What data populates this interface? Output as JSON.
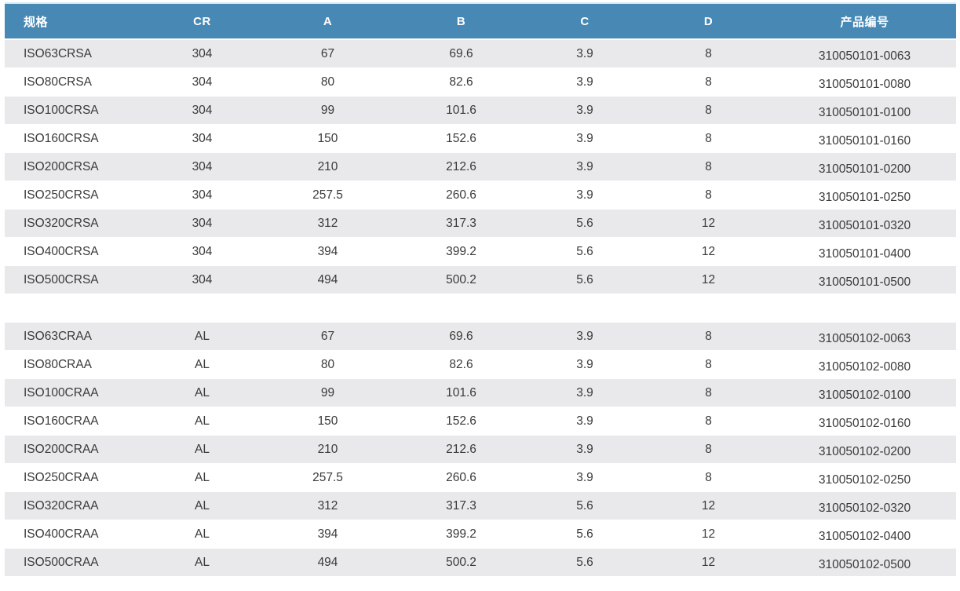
{
  "table": {
    "colors": {
      "header_bg": "#4789b4",
      "header_text": "#ffffff",
      "row_alt_bg": "#e9e9eb",
      "row_bg": "#ffffff",
      "body_text": "#3a3a3a",
      "top_border": "#d5e6f1"
    },
    "columns": [
      {
        "key": "spec",
        "label": "规格"
      },
      {
        "key": "cr",
        "label": "CR"
      },
      {
        "key": "a",
        "label": "A"
      },
      {
        "key": "b",
        "label": "B"
      },
      {
        "key": "c",
        "label": "C"
      },
      {
        "key": "d",
        "label": "D"
      },
      {
        "key": "part_no",
        "label": "产品编号"
      }
    ],
    "sections": [
      {
        "rows": [
          [
            "ISO63CRSA",
            "304",
            "67",
            "69.6",
            "3.9",
            "8",
            "310050101-0063"
          ],
          [
            "ISO80CRSA",
            "304",
            "80",
            "82.6",
            "3.9",
            "8",
            "310050101-0080"
          ],
          [
            "ISO100CRSA",
            "304",
            "99",
            "101.6",
            "3.9",
            "8",
            "310050101-0100"
          ],
          [
            "ISO160CRSA",
            "304",
            "150",
            "152.6",
            "3.9",
            "8",
            "310050101-0160"
          ],
          [
            "ISO200CRSA",
            "304",
            "210",
            "212.6",
            "3.9",
            "8",
            "310050101-0200"
          ],
          [
            "ISO250CRSA",
            "304",
            "257.5",
            "260.6",
            "3.9",
            "8",
            "310050101-0250"
          ],
          [
            "ISO320CRSA",
            "304",
            "312",
            "317.3",
            "5.6",
            "12",
            "310050101-0320"
          ],
          [
            "ISO400CRSA",
            "304",
            "394",
            "399.2",
            "5.6",
            "12",
            "310050101-0400"
          ],
          [
            "ISO500CRSA",
            "304",
            "494",
            "500.2",
            "5.6",
            "12",
            "310050101-0500"
          ]
        ]
      },
      {
        "rows": [
          [
            "ISO63CRAA",
            "AL",
            "67",
            "69.6",
            "3.9",
            "8",
            "310050102-0063"
          ],
          [
            "ISO80CRAA",
            "AL",
            "80",
            "82.6",
            "3.9",
            "8",
            "310050102-0080"
          ],
          [
            "ISO100CRAA",
            "AL",
            "99",
            "101.6",
            "3.9",
            "8",
            "310050102-0100"
          ],
          [
            "ISO160CRAA",
            "AL",
            "150",
            "152.6",
            "3.9",
            "8",
            "310050102-0160"
          ],
          [
            "ISO200CRAA",
            "AL",
            "210",
            "212.6",
            "3.9",
            "8",
            "310050102-0200"
          ],
          [
            "ISO250CRAA",
            "AL",
            "257.5",
            "260.6",
            "3.9",
            "8",
            "310050102-0250"
          ],
          [
            "ISO320CRAA",
            "AL",
            "312",
            "317.3",
            "5.6",
            "12",
            "310050102-0320"
          ],
          [
            "ISO400CRAA",
            "AL",
            "394",
            "399.2",
            "5.6",
            "12",
            "310050102-0400"
          ],
          [
            "ISO500CRAA",
            "AL",
            "494",
            "500.2",
            "5.6",
            "12",
            "310050102-0500"
          ]
        ]
      }
    ]
  }
}
